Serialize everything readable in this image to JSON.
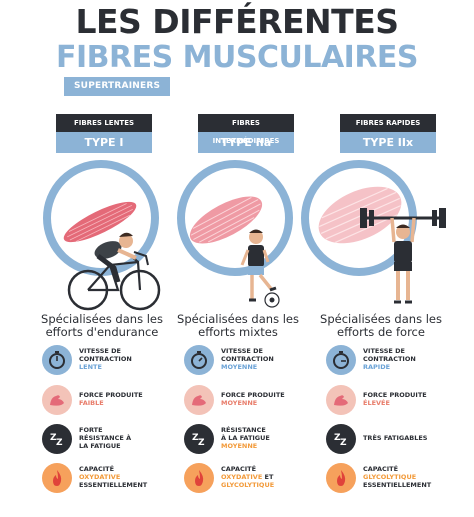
{
  "title": {
    "line1": "LES DIFFÉRENTES",
    "line2": "FIBRES MUSCULAIRES",
    "brand": "SUPERTRAINERS"
  },
  "columns": [
    {
      "header": "FIBRES LENTES",
      "type": "TYPE I",
      "desc_l1": "Spécialisées dans les",
      "desc_l2": "efforts d'endurance",
      "f1_l1": "VITESSE DE",
      "f1_l2": "CONTRACTION",
      "f1_val": "LENTE",
      "f2_l1": "FORCE PRODUITE",
      "f2_val": "FAIBLE",
      "f3_l1": "FORTE",
      "f3_l2": "RÉSISTANCE À",
      "f3_l3": "LA FATIGUE",
      "f4_l1": "CAPACITÉ",
      "f4_val": "OXYDATIVE",
      "f4_l3": "ESSENTIELLEMENT"
    },
    {
      "header": "FIBRES INTERMÉDIAIRES",
      "type": "TYPE IIa",
      "desc_l1": "Spécialisées dans les",
      "desc_l2": "efforts mixtes",
      "f1_l1": "VITESSE DE",
      "f1_l2": "CONTRACTION",
      "f1_val": "MOYENNE",
      "f2_l1": "FORCE PRODUITE",
      "f2_val": "MOYENNE",
      "f3_l1": "RÉSISTANCE",
      "f3_l2": "À LA FATIGUE",
      "f3_val": "MOYENNE",
      "f4_l1": "CAPACITÉ",
      "f4_val1": "OXYDATIVE",
      "f4_and": " ET",
      "f4_val2": "GLYCOLYTIQUE"
    },
    {
      "header": "FIBRES RAPIDES",
      "type": "TYPE IIx",
      "desc_l1": "Spécialisées dans les",
      "desc_l2": "efforts de force",
      "f1_l1": "VITESSE DE",
      "f1_l2": "CONTRACTION",
      "f1_val": "RAPIDE",
      "f2_l1": "FORCE PRODUITE",
      "f2_val": "ÉLEVÉE",
      "f3_l1": "TRÈS FATIGABLES",
      "f4_l1": "CAPACITÉ",
      "f4_val": "GLYCOLYTIQUE",
      "f4_l3": "ESSENTIELLEMENT"
    }
  ],
  "icons": {
    "stopwatch": "stopwatch-icon",
    "muscle": "flexed-arm-icon",
    "sleep": "zzz-icon",
    "fire": "flame-icon"
  },
  "colors": {
    "accent": "#8cb3d6",
    "dark": "#2b2e34",
    "muscle": "#e8707a",
    "orange": "#f6a15c"
  }
}
